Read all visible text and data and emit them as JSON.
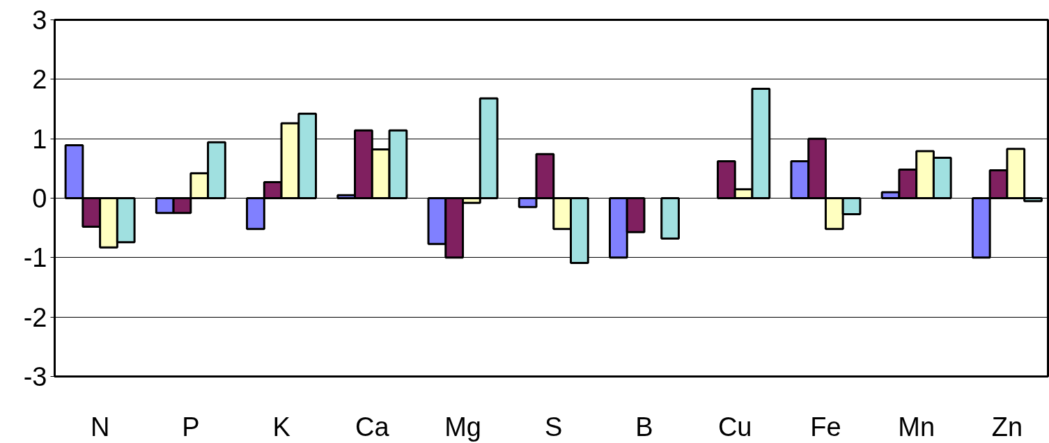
{
  "chart_data": {
    "type": "bar",
    "categories": [
      "N",
      "P",
      "K",
      "Ca",
      "Mg",
      "S",
      "B",
      "Cu",
      "Fe",
      "Mn",
      "Zn"
    ],
    "series": [
      {
        "color": "#8080ff",
        "values": [
          0.89,
          -0.25,
          -0.52,
          0.05,
          -0.77,
          -0.15,
          -1.0,
          null,
          0.62,
          0.1,
          -1.0
        ]
      },
      {
        "color": "#802060",
        "values": [
          -0.48,
          -0.25,
          0.27,
          1.14,
          -1.0,
          0.74,
          -0.57,
          0.62,
          1.0,
          0.48,
          0.47
        ]
      },
      {
        "color": "#ffffc0",
        "values": [
          -0.83,
          0.42,
          1.26,
          0.82,
          -0.08,
          -0.52,
          null,
          0.15,
          -0.52,
          0.79,
          0.83
        ]
      },
      {
        "color": "#a0e0e0",
        "values": [
          -0.74,
          0.94,
          1.42,
          1.14,
          1.68,
          -1.09,
          -0.68,
          1.84,
          -0.27,
          0.68,
          -0.05
        ]
      }
    ],
    "ylim": [
      -3,
      3
    ],
    "yticks": [
      -3,
      -2,
      -1,
      0,
      1,
      2,
      3
    ],
    "grid": "y"
  }
}
